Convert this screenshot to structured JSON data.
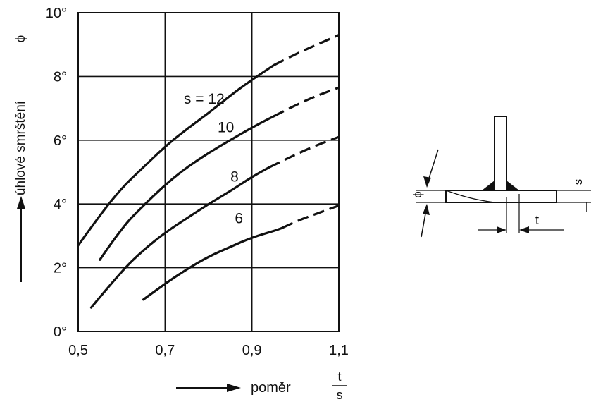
{
  "chart_data": {
    "type": "line",
    "title": "",
    "xlabel": "poměr",
    "xlabel_fraction": {
      "numerator": "t",
      "denominator": "s"
    },
    "ylabel": "úhlové smrštění",
    "ylabel_symbol": "ϕ",
    "xlim": [
      0.5,
      1.1
    ],
    "ylim": [
      0,
      10
    ],
    "x_ticks": [
      0.5,
      0.7,
      0.9,
      1.1
    ],
    "x_tick_labels": [
      "0,5",
      "0,7",
      "0,9",
      "1,1"
    ],
    "y_ticks": [
      0,
      2,
      4,
      6,
      8,
      10
    ],
    "y_tick_labels": [
      "0°",
      "2°",
      "4°",
      "6°",
      "8°",
      "10°"
    ],
    "grid": true,
    "series": [
      {
        "name": "s = 12",
        "label_at": [
          0.79,
          7.15
        ],
        "solid": [
          [
            0.5,
            2.7
          ],
          [
            0.55,
            3.65
          ],
          [
            0.6,
            4.5
          ],
          [
            0.65,
            5.15
          ],
          [
            0.7,
            5.8
          ],
          [
            0.75,
            6.35
          ],
          [
            0.8,
            6.85
          ],
          [
            0.85,
            7.4
          ],
          [
            0.9,
            7.9
          ],
          [
            0.95,
            8.35
          ]
        ],
        "dashed": [
          [
            0.95,
            8.35
          ],
          [
            1.0,
            8.7
          ],
          [
            1.05,
            9.0
          ],
          [
            1.1,
            9.3
          ]
        ]
      },
      {
        "name": "10",
        "label_at": [
          0.84,
          6.25
        ],
        "solid": [
          [
            0.55,
            2.25
          ],
          [
            0.6,
            3.25
          ],
          [
            0.65,
            3.95
          ],
          [
            0.7,
            4.6
          ],
          [
            0.75,
            5.15
          ],
          [
            0.8,
            5.6
          ],
          [
            0.85,
            6.0
          ],
          [
            0.9,
            6.4
          ],
          [
            0.95,
            6.75
          ]
        ],
        "dashed": [
          [
            0.95,
            6.75
          ],
          [
            1.0,
            7.1
          ],
          [
            1.05,
            7.4
          ],
          [
            1.1,
            7.65
          ]
        ]
      },
      {
        "name": "8",
        "label_at": [
          0.86,
          4.7
        ],
        "solid": [
          [
            0.53,
            0.75
          ],
          [
            0.6,
            1.9
          ],
          [
            0.65,
            2.55
          ],
          [
            0.7,
            3.1
          ],
          [
            0.75,
            3.55
          ],
          [
            0.8,
            4.0
          ],
          [
            0.85,
            4.4
          ],
          [
            0.9,
            4.85
          ],
          [
            0.94,
            5.15
          ]
        ],
        "dashed": [
          [
            0.94,
            5.15
          ],
          [
            1.0,
            5.55
          ],
          [
            1.05,
            5.85
          ],
          [
            1.1,
            6.1
          ]
        ]
      },
      {
        "name": "6",
        "label_at": [
          0.87,
          3.4
        ],
        "solid": [
          [
            0.65,
            1.0
          ],
          [
            0.7,
            1.5
          ],
          [
            0.75,
            1.95
          ],
          [
            0.8,
            2.35
          ],
          [
            0.85,
            2.65
          ],
          [
            0.9,
            2.95
          ],
          [
            0.95,
            3.15
          ],
          [
            0.97,
            3.25
          ]
        ],
        "dashed": [
          [
            0.97,
            3.25
          ],
          [
            1.0,
            3.45
          ],
          [
            1.05,
            3.7
          ],
          [
            1.1,
            3.95
          ]
        ]
      }
    ]
  },
  "detail": {
    "phi_label": "ϕ",
    "s_label": "s",
    "t_label": "t"
  }
}
